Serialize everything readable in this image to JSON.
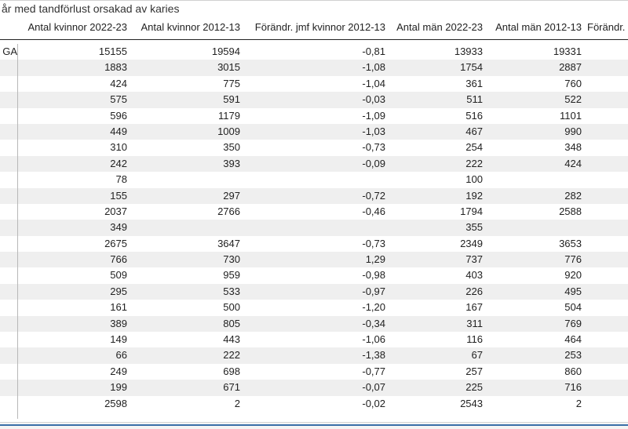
{
  "title": "år med tandförlust orsakad av karies",
  "columns": [
    "Antal kvinnor 2022-23",
    "Antal kvinnor 2012-13",
    "Förändr. jmf kvinnor 2012-13",
    "Antal män 2022-23",
    "Antal män 2012-13",
    "Förändr."
  ],
  "rows": [
    {
      "label": "GA",
      "kv2223": "15155",
      "kv1213": "19594",
      "kvchg": "-0,81",
      "m2223": "13933",
      "m1213": "19331"
    },
    {
      "label": "",
      "kv2223": "1883",
      "kv1213": "3015",
      "kvchg": "-1,08",
      "m2223": "1754",
      "m1213": "2887"
    },
    {
      "label": "",
      "kv2223": "424",
      "kv1213": "775",
      "kvchg": "-1,04",
      "m2223": "361",
      "m1213": "760"
    },
    {
      "label": "",
      "kv2223": "575",
      "kv1213": "591",
      "kvchg": "-0,03",
      "m2223": "511",
      "m1213": "522"
    },
    {
      "label": "",
      "kv2223": "596",
      "kv1213": "1179",
      "kvchg": "-1,09",
      "m2223": "516",
      "m1213": "1101"
    },
    {
      "label": "",
      "kv2223": "449",
      "kv1213": "1009",
      "kvchg": "-1,03",
      "m2223": "467",
      "m1213": "990"
    },
    {
      "label": "",
      "kv2223": "310",
      "kv1213": "350",
      "kvchg": "-0,73",
      "m2223": "254",
      "m1213": "348"
    },
    {
      "label": "",
      "kv2223": "242",
      "kv1213": "393",
      "kvchg": "-0,09",
      "m2223": "222",
      "m1213": "424"
    },
    {
      "label": "",
      "kv2223": "78",
      "kv1213": "",
      "kvchg": "",
      "m2223": "100",
      "m1213": ""
    },
    {
      "label": "",
      "kv2223": "155",
      "kv1213": "297",
      "kvchg": "-0,72",
      "m2223": "192",
      "m1213": "282"
    },
    {
      "label": "",
      "kv2223": "2037",
      "kv1213": "2766",
      "kvchg": "-0,46",
      "m2223": "1794",
      "m1213": "2588"
    },
    {
      "label": "",
      "kv2223": "349",
      "kv1213": "",
      "kvchg": "",
      "m2223": "355",
      "m1213": ""
    },
    {
      "label": "",
      "kv2223": "2675",
      "kv1213": "3647",
      "kvchg": "-0,73",
      "m2223": "2349",
      "m1213": "3653"
    },
    {
      "label": "",
      "kv2223": "766",
      "kv1213": "730",
      "kvchg": "1,29",
      "m2223": "737",
      "m1213": "776"
    },
    {
      "label": "",
      "kv2223": "509",
      "kv1213": "959",
      "kvchg": "-0,98",
      "m2223": "403",
      "m1213": "920"
    },
    {
      "label": "",
      "kv2223": "295",
      "kv1213": "533",
      "kvchg": "-0,97",
      "m2223": "226",
      "m1213": "495"
    },
    {
      "label": "",
      "kv2223": "161",
      "kv1213": "500",
      "kvchg": "-1,20",
      "m2223": "167",
      "m1213": "504"
    },
    {
      "label": "",
      "kv2223": "389",
      "kv1213": "805",
      "kvchg": "-0,34",
      "m2223": "311",
      "m1213": "769"
    },
    {
      "label": "",
      "kv2223": "149",
      "kv1213": "443",
      "kvchg": "-1,06",
      "m2223": "116",
      "m1213": "464"
    },
    {
      "label": "",
      "kv2223": "66",
      "kv1213": "222",
      "kvchg": "-1,38",
      "m2223": "67",
      "m1213": "253"
    },
    {
      "label": "",
      "kv2223": "249",
      "kv1213": "698",
      "kvchg": "-0,77",
      "m2223": "257",
      "m1213": "860"
    },
    {
      "label": "",
      "kv2223": "199",
      "kv1213": "671",
      "kvchg": "-0,07",
      "m2223": "225",
      "m1213": "716"
    },
    {
      "label": "",
      "kv2223": "2598",
      "kv1213": "2",
      "kvchg": "-0,02",
      "m2223": "2543",
      "m1213": "2"
    }
  ]
}
